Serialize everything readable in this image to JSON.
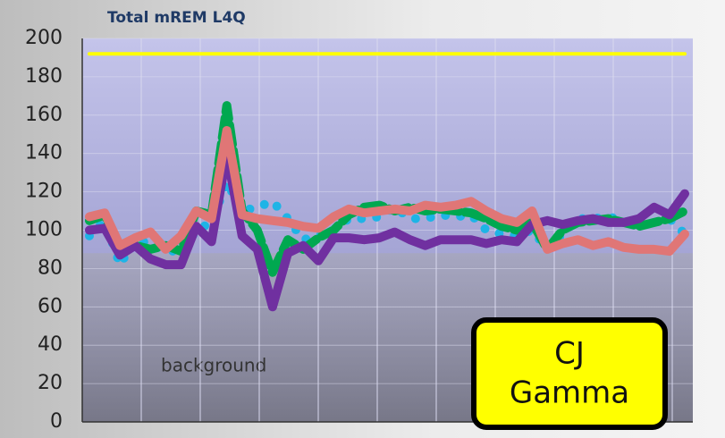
{
  "chart_data": {
    "type": "line",
    "title": "Total mREM L4Q",
    "categories": [
      null,
      null,
      null,
      null,
      null,
      null,
      null,
      null,
      null,
      null,
      null,
      null,
      null,
      null,
      null,
      null,
      null,
      null,
      null,
      null,
      null,
      null,
      null,
      null,
      null,
      null,
      null,
      null,
      null,
      null,
      null,
      null,
      null,
      null,
      null,
      null,
      null,
      null,
      null,
      null
    ],
    "series": [
      {
        "color": "#ffff00",
        "style": "solid",
        "width": 4,
        "values": [
          192,
          192,
          192,
          192,
          192,
          192,
          192,
          192,
          192,
          192,
          192,
          192,
          192,
          192,
          192,
          192,
          192,
          192,
          192,
          192,
          192,
          192,
          192,
          192,
          192,
          192,
          192,
          192,
          192,
          192,
          192,
          192,
          192,
          192,
          192,
          192,
          192,
          192,
          192,
          192
        ]
      },
      {
        "color": "#1eb4e6",
        "style": "dotted",
        "width": 10,
        "values": [
          97,
          105,
          82,
          95,
          93,
          90,
          88,
          100,
          104,
          125,
          110,
          112,
          115,
          106,
          95,
          97,
          100,
          106,
          106,
          107,
          112,
          106,
          106,
          108,
          107,
          108,
          100,
          98,
          97,
          100,
          90,
          98,
          106,
          106,
          107,
          105,
          103,
          104,
          106,
          98
        ]
      },
      {
        "color": "#00a850",
        "style": "dashed",
        "width": 10,
        "values": [
          105,
          108,
          88,
          92,
          90,
          92,
          89,
          110,
          108,
          165,
          110,
          100,
          78,
          95,
          90,
          96,
          100,
          108,
          112,
          113,
          110,
          112,
          110,
          111,
          110,
          109,
          106,
          102,
          100,
          104,
          90,
          100,
          104,
          105,
          106,
          104,
          102,
          104,
          106,
          110
        ]
      },
      {
        "color": "#7030a0",
        "style": "solid",
        "width": 10,
        "values": [
          100,
          101,
          87,
          92,
          85,
          82,
          82,
          102,
          94,
          140,
          97,
          90,
          60,
          88,
          92,
          84,
          96,
          96,
          95,
          96,
          99,
          95,
          92,
          95,
          95,
          95,
          93,
          95,
          94,
          103,
          105,
          103,
          105,
          106,
          104,
          104,
          106,
          112,
          108,
          119
        ]
      },
      {
        "color": "#e07676",
        "style": "solid",
        "width": 10,
        "values": [
          107,
          109,
          92,
          96,
          99,
          90,
          97,
          110,
          106,
          152,
          108,
          106,
          105,
          104,
          102,
          101,
          107,
          111,
          109,
          110,
          111,
          110,
          113,
          112,
          113,
          115,
          110,
          106,
          104,
          110,
          90,
          93,
          95,
          92,
          94,
          91,
          90,
          90,
          89,
          98
        ]
      }
    ],
    "ylim": [
      0,
      200
    ],
    "yticks": [
      0,
      20,
      40,
      60,
      80,
      100,
      120,
      140,
      160,
      180,
      200
    ],
    "grid": true,
    "background_level": 88,
    "background_label": "background",
    "badge": [
      "CJ",
      "Gamma"
    ]
  }
}
